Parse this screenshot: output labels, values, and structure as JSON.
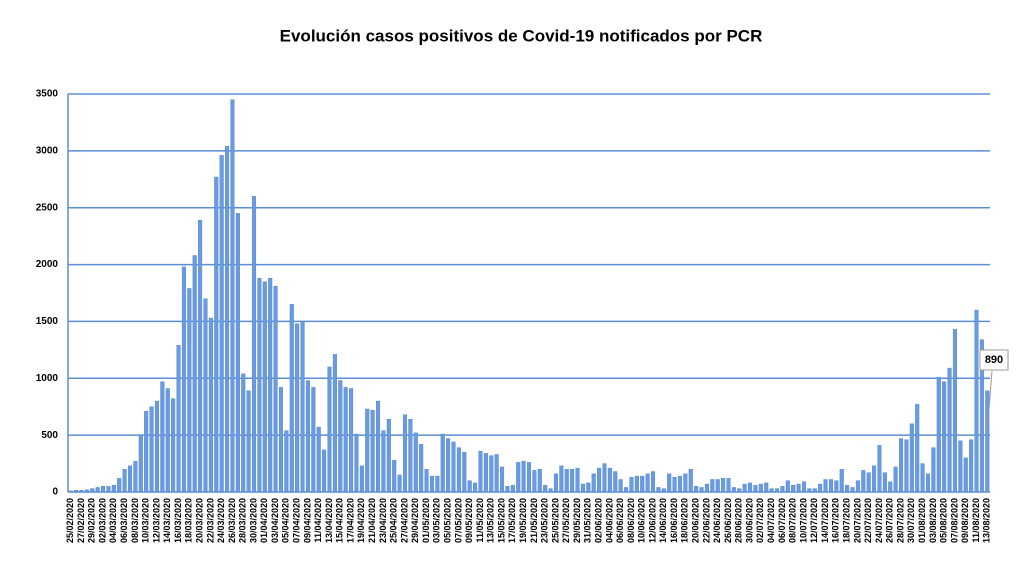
{
  "chart_data": {
    "type": "bar",
    "title": "Evolución casos positivos de Covid-19 notificados por PCR",
    "categories": [
      "25/02/2020",
      null,
      "27/02/2020",
      null,
      "29/02/2020",
      null,
      "02/03/2020",
      null,
      "04/03/2020",
      null,
      "06/03/2020",
      null,
      "08/03/2020",
      null,
      "10/03/2020",
      null,
      "12/03/2020",
      null,
      "14/03/2020",
      null,
      "16/03/2020",
      null,
      "18/03/2020",
      null,
      "20/03/2020",
      null,
      "22/03/2020",
      null,
      "24/03/2020",
      null,
      "26/03/2020",
      null,
      "28/03/2020",
      null,
      "30/03/2020",
      null,
      "01/04/2020",
      null,
      "03/04/2020",
      null,
      "05/04/2020",
      null,
      "07/04/2020",
      null,
      "09/04/2020",
      null,
      "11/04/2020",
      null,
      "13/04/2020",
      null,
      "15/04/2020",
      null,
      "17/04/2020",
      null,
      "19/04/2020",
      null,
      "21/04/2020",
      null,
      "23/04/2020",
      null,
      "25/04/2020",
      null,
      "27/04/2020",
      null,
      "29/04/2020",
      null,
      "01/05/2020",
      null,
      "03/05/2020",
      null,
      "05/05/2020",
      null,
      "07/05/2020",
      null,
      "09/05/2020",
      null,
      "11/05/2020",
      null,
      "13/05/2020",
      null,
      "15/05/2020",
      null,
      "17/05/2020",
      null,
      "19/05/2020",
      null,
      "21/05/2020",
      null,
      "23/05/2020",
      null,
      "25/05/2020",
      null,
      "27/05/2020",
      null,
      "29/05/2020",
      null,
      "31/05/2020",
      null,
      "02/06/2020",
      null,
      "04/06/2020",
      null,
      "06/06/2020",
      null,
      "08/06/2020",
      null,
      "10/06/2020",
      null,
      "12/06/2020",
      null,
      "14/06/2020",
      null,
      "16/06/2020",
      null,
      "18/06/2020",
      null,
      "20/06/2020",
      null,
      "22/06/2020",
      null,
      "24/06/2020",
      null,
      "26/06/2020",
      null,
      "28/06/2020",
      null,
      "30/06/2020",
      null,
      "02/07/2020",
      null,
      "04/07/2020",
      null,
      "06/07/2020",
      null,
      "08/07/2020",
      null,
      "10/07/2020",
      null,
      "12/07/2020",
      null,
      "14/07/2020",
      null,
      "16/07/2020",
      null,
      "18/07/2020",
      null,
      "20/07/2020",
      null,
      "22/07/2020",
      null,
      "24/07/2020",
      null,
      "26/07/2020",
      null,
      "28/07/2020",
      null,
      "30/07/2020",
      null,
      "01/08/2020",
      null,
      "03/08/2020",
      null,
      "05/08/2020",
      null,
      "07/08/2020",
      null,
      "09/08/2020",
      null,
      "11/08/2020",
      null,
      "13/08/2020"
    ],
    "values": [
      10,
      15,
      15,
      20,
      30,
      40,
      50,
      50,
      60,
      120,
      200,
      230,
      270,
      500,
      710,
      750,
      800,
      970,
      910,
      820,
      1290,
      1980,
      1790,
      2080,
      2390,
      1700,
      1530,
      2770,
      2960,
      3040,
      3450,
      2450,
      1040,
      890,
      2600,
      1880,
      1850,
      1880,
      1810,
      920,
      540,
      1650,
      1480,
      1500,
      980,
      920,
      570,
      370,
      1100,
      1210,
      980,
      920,
      910,
      510,
      230,
      730,
      720,
      800,
      540,
      640,
      280,
      150,
      680,
      640,
      520,
      420,
      200,
      140,
      140,
      510,
      470,
      440,
      390,
      350,
      100,
      80,
      360,
      340,
      320,
      330,
      220,
      50,
      60,
      260,
      270,
      260,
      190,
      200,
      60,
      30,
      160,
      230,
      200,
      200,
      210,
      70,
      80,
      160,
      210,
      250,
      210,
      180,
      110,
      40,
      130,
      140,
      140,
      160,
      180,
      40,
      30,
      160,
      130,
      140,
      160,
      200,
      50,
      40,
      70,
      110,
      110,
      120,
      120,
      40,
      30,
      70,
      80,
      60,
      70,
      80,
      30,
      30,
      50,
      100,
      60,
      70,
      90,
      30,
      30,
      70,
      110,
      110,
      100,
      200,
      60,
      40,
      100,
      190,
      170,
      230,
      410,
      170,
      90,
      220,
      470,
      460,
      600,
      770,
      250,
      160,
      390,
      1010,
      970,
      1090,
      1430,
      450,
      300,
      460,
      1600,
      1340,
      890
    ],
    "color": "#6a9be0",
    "ylim": [
      0,
      3500
    ],
    "yticks": [
      0,
      500,
      1000,
      1500,
      2000,
      2500,
      3000,
      3500
    ],
    "grid": true
  }
}
